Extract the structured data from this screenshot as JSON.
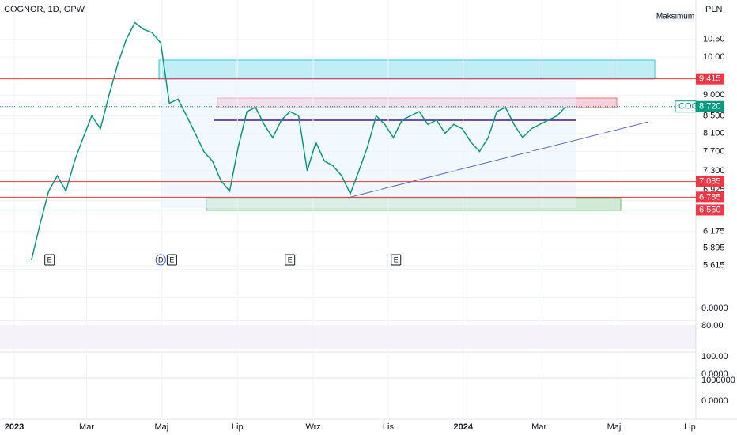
{
  "header": {
    "symbol": "COGNOR, 1D, GPW",
    "currency": "PLN",
    "scale": "Maksimum"
  },
  "chart_data": {
    "type": "line",
    "log_scale": true,
    "color": "#089981",
    "x": [
      2,
      3,
      4,
      5,
      6,
      7,
      8,
      9,
      10,
      11,
      12,
      13,
      14,
      15,
      16,
      17,
      18,
      19,
      20,
      21,
      22,
      23,
      24,
      25,
      26,
      27,
      28,
      29,
      30,
      31,
      32,
      33,
      34,
      35,
      36,
      37,
      38,
      39,
      40,
      41,
      42,
      43,
      44,
      45,
      46,
      47,
      48,
      49,
      50,
      51,
      52,
      53,
      54,
      55,
      56,
      57,
      58,
      59,
      60,
      61,
      62,
      63,
      64
    ],
    "values": [
      5.7,
      6.3,
      6.9,
      7.2,
      6.9,
      7.5,
      8.0,
      8.5,
      8.2,
      9.0,
      9.8,
      10.5,
      11.0,
      10.8,
      10.7,
      10.4,
      8.8,
      8.9,
      8.5,
      8.1,
      7.7,
      7.5,
      7.1,
      6.9,
      7.8,
      8.6,
      8.7,
      8.3,
      8.0,
      8.4,
      8.6,
      8.5,
      7.3,
      7.9,
      7.5,
      7.4,
      7.2,
      6.85,
      7.3,
      7.8,
      8.5,
      8.3,
      8.0,
      8.4,
      8.5,
      8.6,
      8.3,
      8.4,
      8.1,
      8.3,
      8.2,
      7.9,
      7.7,
      8.0,
      8.6,
      8.7,
      8.3,
      8.0,
      8.2,
      8.3,
      8.4,
      8.5,
      8.72
    ],
    "xlim": [
      -1.65,
      79.1
    ],
    "xticks": [
      {
        "value": 0,
        "label": "2023"
      },
      {
        "value": 8.4,
        "label": "Mar"
      },
      {
        "value": 17.1,
        "label": "Maj"
      },
      {
        "value": 25.9,
        "label": "Lip"
      },
      {
        "value": 34.7,
        "label": "Wrz"
      },
      {
        "value": 43.4,
        "label": "Lis"
      },
      {
        "value": 52.1,
        "label": "2024"
      },
      {
        "value": 60.9,
        "label": "Mar"
      },
      {
        "value": 69.6,
        "label": "Maj"
      },
      {
        "value": 78.4,
        "label": "Lip"
      }
    ],
    "ylim": [
      5.564,
      11.71
    ],
    "yticks": [
      {
        "value": 10.5,
        "label": "10.50"
      },
      {
        "value": 10,
        "label": "10.00"
      },
      {
        "value": 9,
        "label": "9.000"
      },
      {
        "value": 8.5,
        "label": "8.500"
      },
      {
        "value": 8.1,
        "label": "8.100"
      },
      {
        "value": 7.7,
        "label": "7.700"
      },
      {
        "value": 7.3,
        "label": "7.300"
      },
      6.925,
      6.175,
      5.895,
      5.615
    ],
    "levels": [
      9.415,
      7.085,
      6.785,
      {
        "value": 6.55,
        "label": "6.550"
      }
    ],
    "level_color": "#f23645",
    "last_price": {
      "name": "COG",
      "value": 8.72,
      "label": "8.720",
      "color": "#089981"
    },
    "events": [
      {
        "label": "E",
        "x": 4.1
      },
      {
        "label": "D",
        "x": 17.0
      },
      {
        "label": "E",
        "x": 18.3
      },
      {
        "label": "E",
        "x": 32.0
      },
      {
        "label": "E",
        "x": 44.3
      }
    ]
  },
  "indicator_labels": [
    "0.0000",
    "80.00",
    "100.00",
    "0.0000",
    "1000000",
    "0.0000"
  ]
}
